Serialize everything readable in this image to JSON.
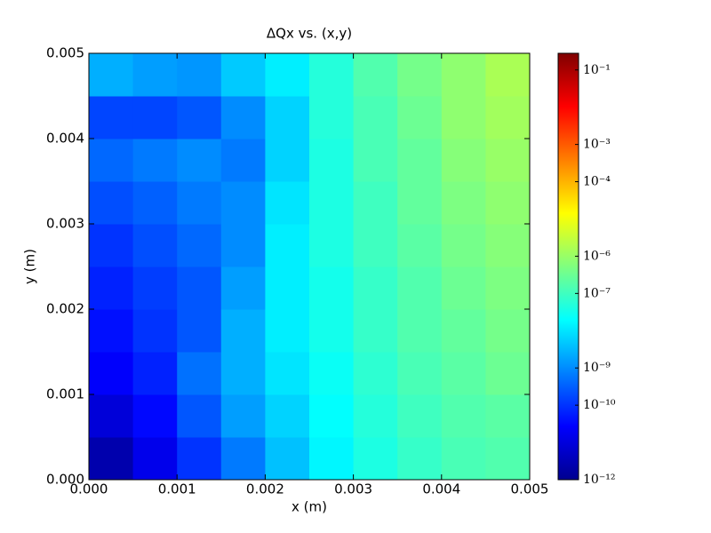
{
  "chart_data": {
    "type": "heatmap",
    "title": "ΔQx vs. (x,y)",
    "xlabel": "x (m)",
    "ylabel": "y (m)",
    "xbins": [
      0,
      0.0005,
      0.001,
      0.0015,
      0.002,
      0.0025,
      0.003,
      0.0035,
      0.004,
      0.0045,
      0.005
    ],
    "ybins": [
      0,
      0.0005,
      0.001,
      0.0015,
      0.002,
      0.0025,
      0.003,
      0.0035,
      0.004,
      0.0045,
      0.005
    ],
    "values": [
      [
        3.2e-12,
        1.6e-11,
        1e-10,
        6.3e-10,
        4e-09,
        1.6e-08,
        4e-08,
        7.9e-08,
        1.3e-07,
        1.6e-07
      ],
      [
        1e-11,
        3.2e-11,
        2.5e-10,
        1.6e-09,
        6.3e-09,
        2e-08,
        5e-08,
        1e-07,
        1.6e-07,
        2e-07
      ],
      [
        2.5e-11,
        6.3e-11,
        5e-10,
        2.5e-09,
        1e-08,
        2.5e-08,
        6.3e-08,
        1.3e-07,
        2e-07,
        3.2e-07
      ],
      [
        4e-11,
        1e-10,
        2.5e-10,
        2.5e-09,
        1.3e-08,
        3.2e-08,
        7.9e-08,
        1.6e-07,
        2.5e-07,
        4e-07
      ],
      [
        6.3e-11,
        1.3e-10,
        2.5e-10,
        1.6e-09,
        1.3e-08,
        3.2e-08,
        7.9e-08,
        1.6e-07,
        3.2e-07,
        5e-07
      ],
      [
        1e-10,
        2e-10,
        4e-10,
        1e-09,
        1.3e-08,
        4e-08,
        1e-07,
        2e-07,
        4e-07,
        6.3e-07
      ],
      [
        2e-10,
        3.2e-10,
        6.3e-10,
        1e-09,
        1e-08,
        4e-08,
        1e-07,
        2.5e-07,
        5e-07,
        7.9e-07
      ],
      [
        4e-10,
        6.3e-10,
        1e-09,
        6.3e-10,
        6.3e-09,
        4e-08,
        1.3e-07,
        2.5e-07,
        6.3e-07,
        1e-06
      ],
      [
        1.6e-10,
        1.6e-10,
        2.5e-10,
        1e-09,
        6.3e-09,
        5e-08,
        1.3e-07,
        3.2e-07,
        7.9e-07,
        1.3e-06
      ],
      [
        2.5e-09,
        1.6e-09,
        1.3e-09,
        5e-09,
        1.3e-08,
        5e-08,
        1.6e-07,
        4e-07,
        7.9e-07,
        1.6e-06
      ]
    ],
    "xlim": [
      0,
      0.005
    ],
    "ylim": [
      0,
      0.005
    ],
    "xticks": [
      {
        "value": 0,
        "label": "0.000"
      },
      {
        "value": 0.001,
        "label": "0.001"
      },
      {
        "value": 0.002,
        "label": "0.002"
      },
      {
        "value": 0.003,
        "label": "0.003"
      },
      {
        "value": 0.004,
        "label": "0.004"
      },
      {
        "value": 0.005,
        "label": "0.005"
      }
    ],
    "yticks": [
      {
        "value": 0,
        "label": "0.000"
      },
      {
        "value": 0.001,
        "label": "0.001"
      },
      {
        "value": 0.002,
        "label": "0.002"
      },
      {
        "value": 0.003,
        "label": "0.003"
      },
      {
        "value": 0.004,
        "label": "0.004"
      },
      {
        "value": 0.005,
        "label": "0.005"
      }
    ],
    "colorbar": {
      "scale": "log",
      "lim": [
        1e-12,
        0.28
      ],
      "ticks": [
        {
          "value": 1e-12,
          "label": "10⁻¹²"
        },
        {
          "value": 1e-10,
          "label": "10⁻¹⁰"
        },
        {
          "value": 1e-09,
          "label": "10⁻⁹"
        },
        {
          "value": 1e-07,
          "label": "10⁻⁷"
        },
        {
          "value": 1e-06,
          "label": "10⁻⁶"
        },
        {
          "value": 0.0001,
          "label": "10⁻⁴"
        },
        {
          "value": 0.001,
          "label": "10⁻³"
        },
        {
          "value": 0.1,
          "label": "10⁻¹"
        }
      ]
    }
  }
}
